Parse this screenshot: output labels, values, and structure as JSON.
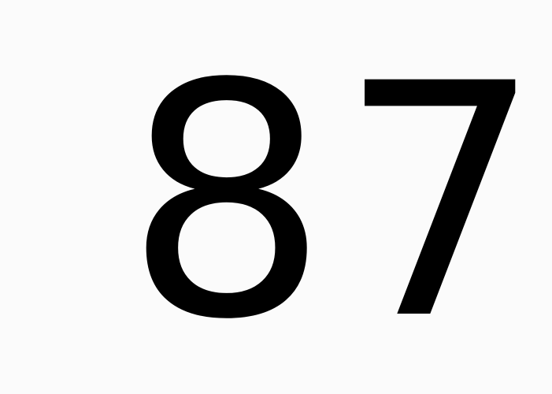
{
  "display": {
    "value": "87"
  },
  "colors": {
    "background": "#fbfbfb",
    "text": "#000000"
  }
}
